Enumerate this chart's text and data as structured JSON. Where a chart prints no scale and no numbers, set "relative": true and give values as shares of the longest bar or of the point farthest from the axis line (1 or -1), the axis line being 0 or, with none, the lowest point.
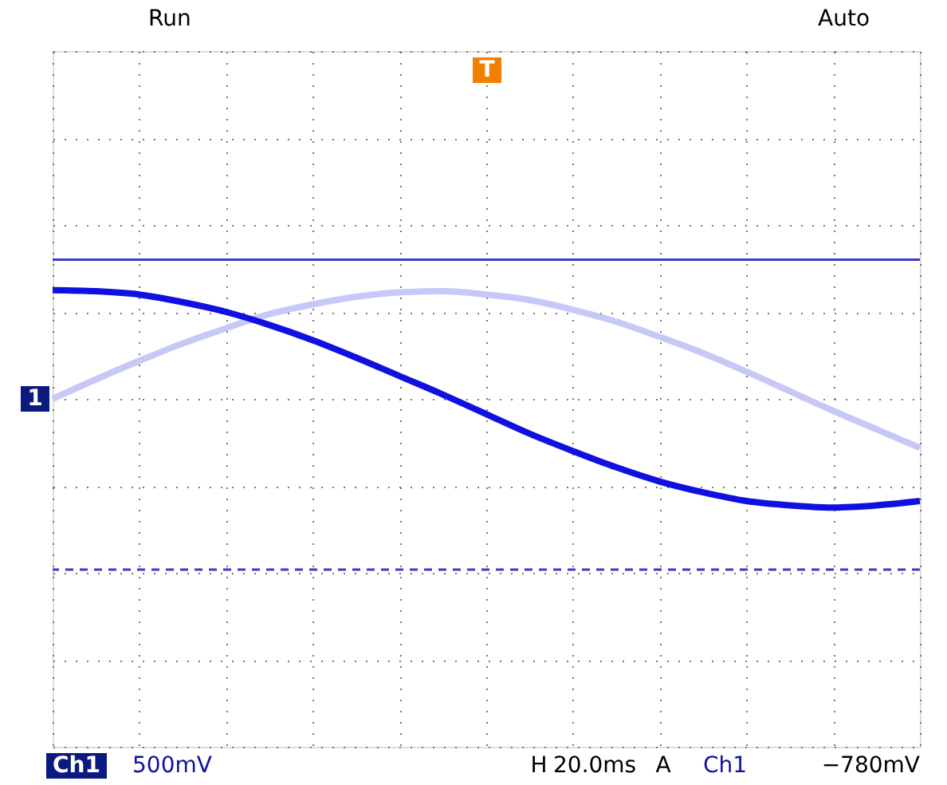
{
  "chart_data": {
    "type": "line",
    "relative": true,
    "grid": true,
    "marker": "none",
    "line_style": "solid",
    "categories": [
      null,
      null,
      null,
      null,
      null,
      null,
      null,
      null,
      null,
      null,
      null,
      null,
      null,
      null,
      null,
      null,
      null,
      null,
      null,
      null,
      null
    ],
    "series": [
      {
        "color": "#c8c8f8",
        "values": [
          0,
          0.18,
          0.35,
          0.51,
          0.65,
          0.78,
          0.87,
          0.94,
          0.98,
          0.99,
          0.96,
          0.91,
          0.82,
          0.71,
          0.57,
          0.42,
          0.25,
          0.07,
          -0.11,
          -0.28,
          -0.45
        ]
      },
      {
        "color": "#1010e0",
        "values": [
          1.0,
          0.99,
          0.96,
          0.89,
          0.8,
          0.68,
          0.54,
          0.38,
          0.21,
          0.04,
          -0.14,
          -0.32,
          -0.48,
          -0.63,
          -0.76,
          -0.86,
          -0.94,
          -0.98,
          -1.0,
          -0.98,
          -0.94
        ]
      }
    ],
    "ref_lines": [
      {
        "axis": "y",
        "value": 1.28,
        "color": "#3a3acc",
        "line_style": "solid"
      },
      {
        "axis": "y",
        "value": -1.57,
        "color": "#3a3acc",
        "line_style": "dashed"
      }
    ],
    "annotations": [
      "Run",
      "Auto",
      "1",
      "T",
      "Ch1",
      "500mV",
      "H",
      "20.0ms",
      "A",
      "Ch1",
      "−780mV"
    ]
  }
}
